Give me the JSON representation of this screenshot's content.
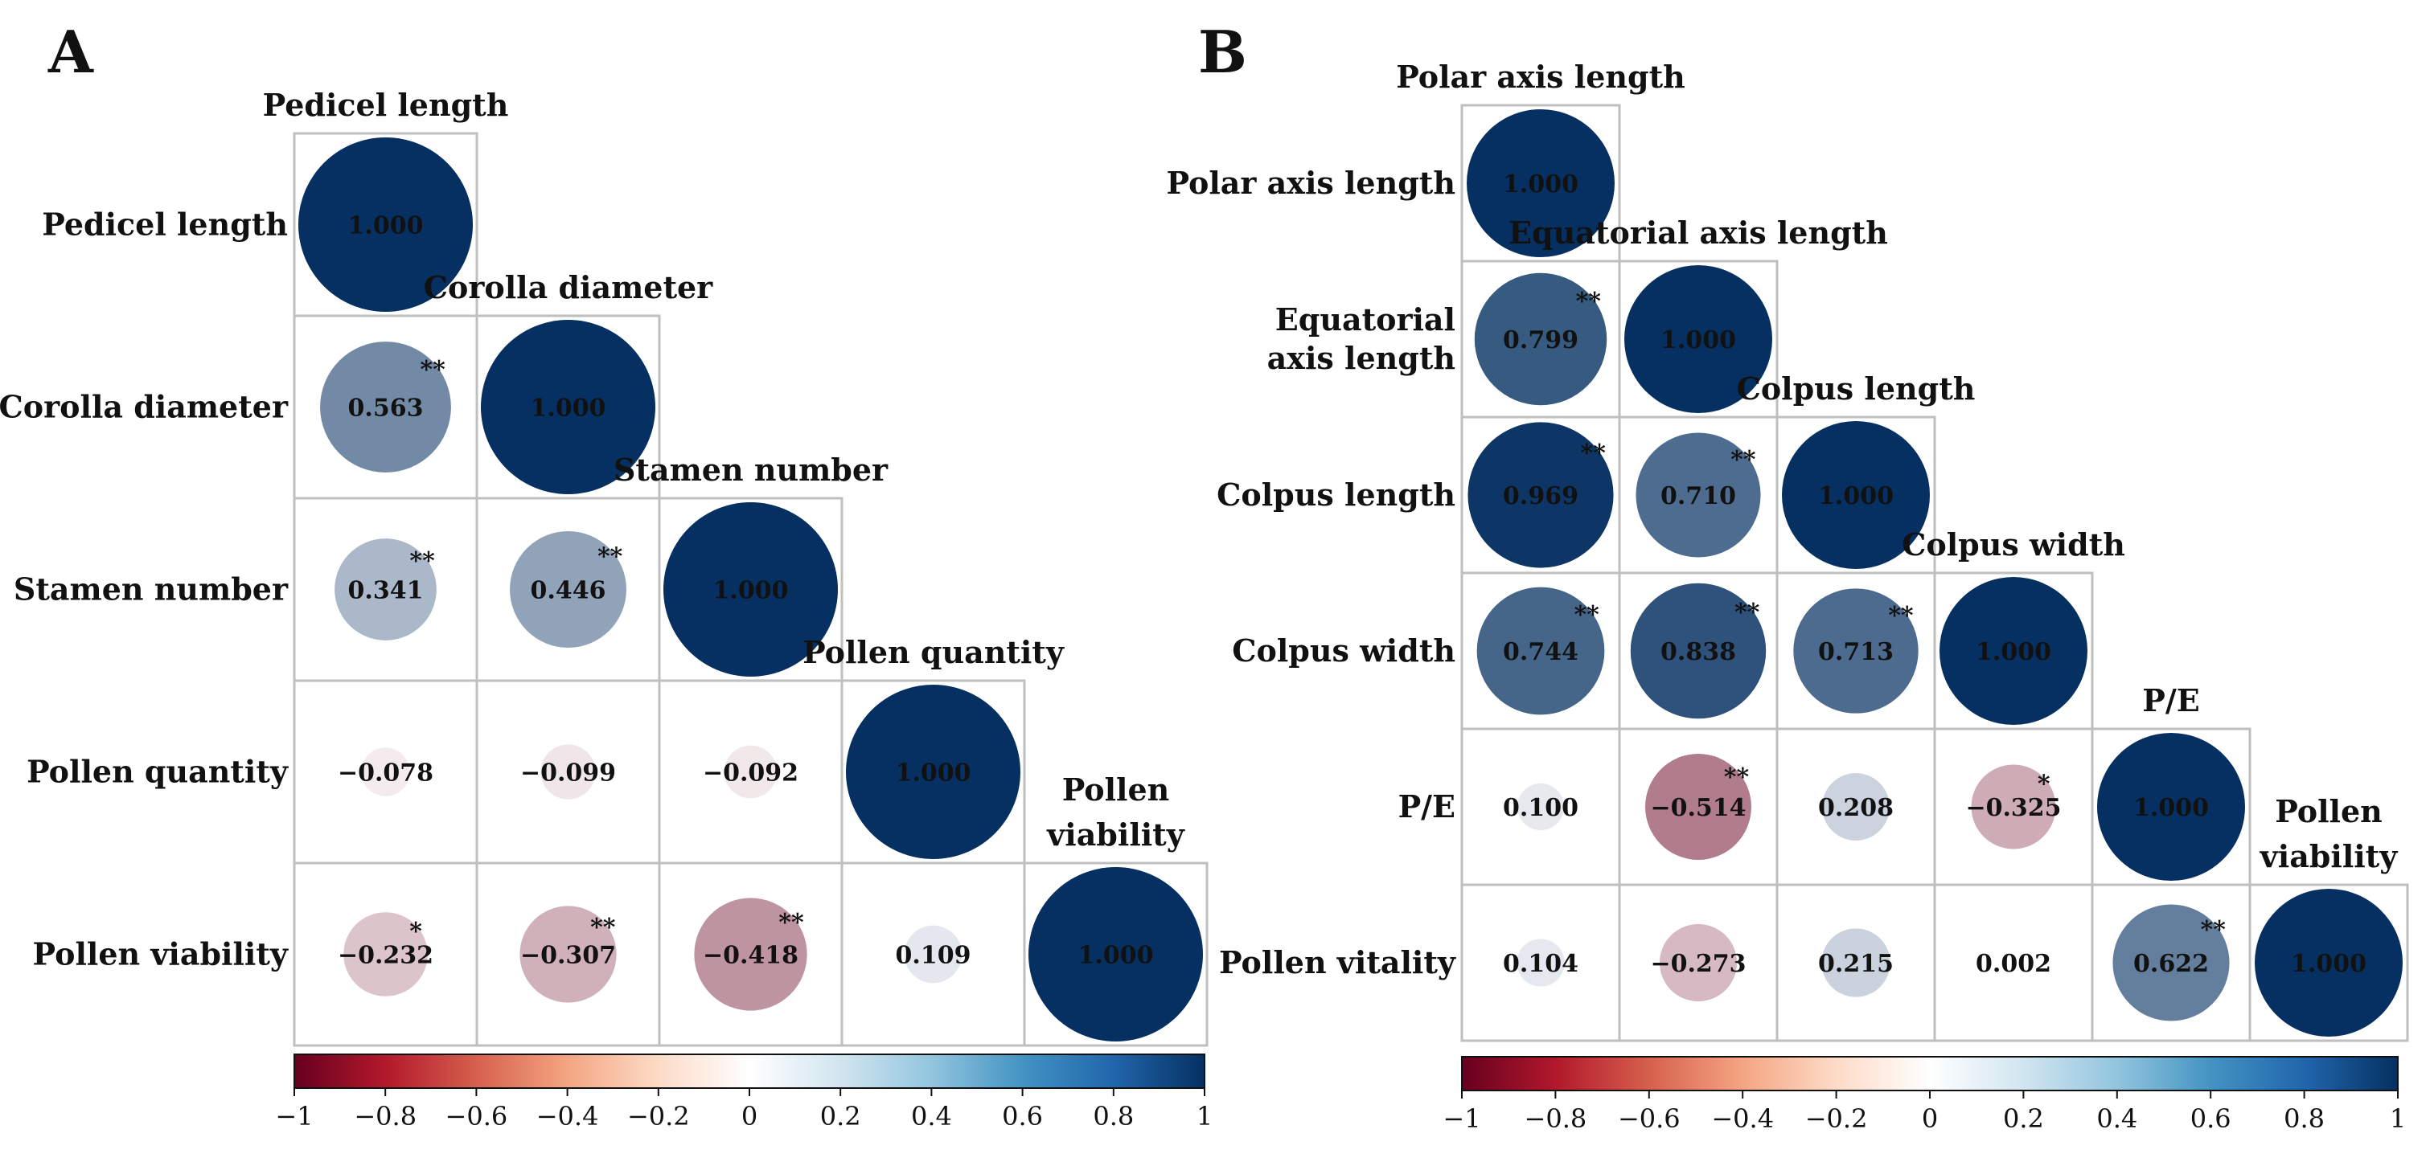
{
  "chart_data": [
    {
      "panel": "A",
      "type": "heatmap",
      "subtype": "correlation-circle-matrix",
      "variables": [
        "Pedicel length",
        "Corolla diameter",
        "Stamen number",
        "Pollen quantity",
        "Pollen viability"
      ],
      "matrix": [
        [
          1.0,
          null,
          null,
          null,
          null
        ],
        [
          0.563,
          1.0,
          null,
          null,
          null
        ],
        [
          0.341,
          0.446,
          1.0,
          null,
          null
        ],
        [
          -0.078,
          -0.099,
          -0.092,
          1.0,
          null
        ],
        [
          -0.232,
          -0.307,
          -0.418,
          0.109,
          1.0
        ]
      ],
      "labels": [
        [
          "1.000",
          null,
          null,
          null,
          null
        ],
        [
          "0.563",
          "1.000",
          null,
          null,
          null
        ],
        [
          "0.341",
          "0.446",
          "1.000",
          null,
          null
        ],
        [
          "−0.078",
          "−0.099",
          "−0.092",
          "1.000",
          null
        ],
        [
          "−0.232",
          "−0.307",
          "−0.418",
          "0.109",
          "1.000"
        ]
      ],
      "significance": [
        [
          "",
          null,
          null,
          null,
          null
        ],
        [
          "**",
          "",
          null,
          null,
          null
        ],
        [
          "**",
          "**",
          "",
          null,
          null
        ],
        [
          "",
          "",
          "",
          "",
          null
        ],
        [
          "*",
          "**",
          "**",
          "",
          ""
        ]
      ],
      "colorbar": {
        "range": [
          -1,
          1
        ],
        "ticks": [
          "−1",
          "−0.8",
          "−0.6",
          "−0.4",
          "−0.2",
          "0",
          "0.2",
          "0.4",
          "0.6",
          "0.8",
          "1"
        ]
      }
    },
    {
      "panel": "B",
      "type": "heatmap",
      "subtype": "correlation-circle-matrix",
      "variables": [
        "Polar axis length",
        "Equatorial axis length",
        "Colpus length",
        "Colpus width",
        "P/E",
        "Pollen vitality"
      ],
      "matrix": [
        [
          1.0,
          null,
          null,
          null,
          null,
          null
        ],
        [
          0.799,
          1.0,
          null,
          null,
          null,
          null
        ],
        [
          0.969,
          0.71,
          1.0,
          null,
          null,
          null
        ],
        [
          0.744,
          0.838,
          0.713,
          1.0,
          null,
          null
        ],
        [
          0.1,
          -0.514,
          0.208,
          -0.325,
          1.0,
          null
        ],
        [
          0.104,
          -0.273,
          0.215,
          0.002,
          0.622,
          1.0
        ]
      ],
      "labels": [
        [
          "1.000",
          null,
          null,
          null,
          null,
          null
        ],
        [
          "0.799",
          "1.000",
          null,
          null,
          null,
          null
        ],
        [
          "0.969",
          "0.710",
          "1.000",
          null,
          null,
          null
        ],
        [
          "0.744",
          "0.838",
          "0.713",
          "1.000",
          null,
          null
        ],
        [
          "0.100",
          "−0.514",
          "0.208",
          "−0.325",
          "1.000",
          null
        ],
        [
          "0.104",
          "−0.273",
          "0.215",
          "0.002",
          "0.622",
          "1.000"
        ]
      ],
      "significance": [
        [
          "",
          null,
          null,
          null,
          null,
          null
        ],
        [
          "**",
          "",
          null,
          null,
          null,
          null
        ],
        [
          "**",
          "**",
          "",
          null,
          null,
          null
        ],
        [
          "**",
          "**",
          "**",
          "",
          null,
          null
        ],
        [
          "",
          "**",
          "",
          "*",
          "",
          null
        ],
        [
          "",
          "",
          "",
          "",
          "**",
          ""
        ]
      ],
      "colorbar": {
        "range": [
          -1,
          1
        ],
        "ticks": [
          "−1",
          "−0.8",
          "−0.6",
          "−0.4",
          "−0.2",
          "0",
          "0.2",
          "0.4",
          "0.6",
          "0.8",
          "1"
        ]
      }
    }
  ],
  "panels": {
    "A": {
      "letter": "A",
      "row_labels": [
        [
          "Pedicel length"
        ],
        [
          "Corolla diameter"
        ],
        [
          "Stamen number"
        ],
        [
          "Pollen quantity"
        ],
        [
          "Pollen viability"
        ]
      ],
      "diag_labels": [
        [
          "Pedicel length"
        ],
        [
          "Corolla diameter"
        ],
        [
          "Stamen number"
        ],
        [
          "Pollen quantity"
        ],
        [
          "Pollen",
          "viability"
        ]
      ]
    },
    "B": {
      "letter": "B",
      "row_labels": [
        [
          "Polar axis length"
        ],
        [
          "Equatorial",
          "axis length"
        ],
        [
          "Colpus length"
        ],
        [
          "Colpus width"
        ],
        [
          "P/E"
        ],
        [
          "Pollen vitality"
        ]
      ],
      "diag_labels": [
        [
          "Polar axis length"
        ],
        [
          "Equatorial axis length"
        ],
        [
          "Colpus length"
        ],
        [
          "Colpus width"
        ],
        [
          "P/E"
        ],
        [
          "Pollen",
          "viability"
        ]
      ]
    }
  },
  "colors": {
    "negative": "#67001f",
    "zero": "#ffffff",
    "positive": "#053061",
    "grid": "#bfbfbf",
    "text": "#111111"
  }
}
